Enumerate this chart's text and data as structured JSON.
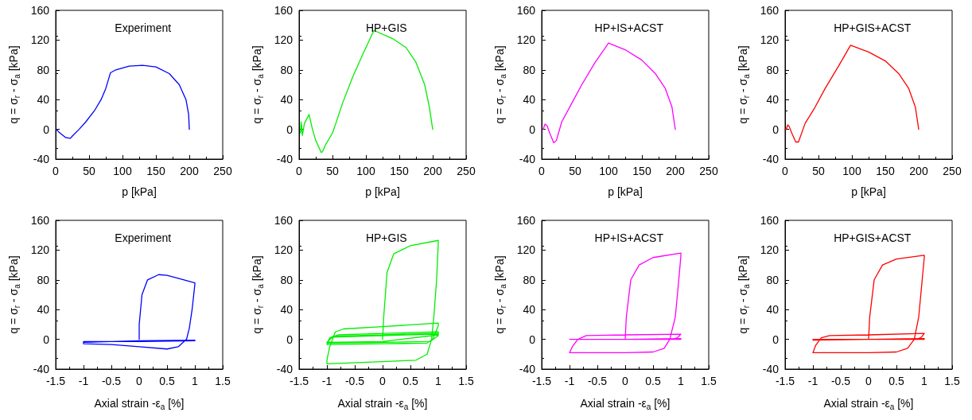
{
  "chart_data": [
    {
      "type": "line",
      "title": "Experiment",
      "xlabel": "p [kPa]",
      "ylabel": "q = σ$_{r}$ - σ$_{a}$ [kPa]",
      "xlim": [
        0,
        250
      ],
      "xticks": [
        0,
        50,
        100,
        150,
        200,
        250
      ],
      "ylim": [
        -40,
        160
      ],
      "yticks": [
        -40,
        0,
        40,
        80,
        120,
        160
      ],
      "grid": false,
      "series": [
        {
          "color": "#0000ff",
          "x": [
            200,
            199,
            195,
            185,
            170,
            150,
            130,
            110,
            90,
            82,
            80,
            75,
            68,
            58,
            45,
            35,
            25,
            22,
            15,
            8,
            4,
            2,
            1
          ],
          "values": [
            0,
            20,
            40,
            60,
            75,
            84,
            86,
            85,
            80,
            76,
            70,
            55,
            40,
            25,
            10,
            0,
            -9,
            -12,
            -11,
            -6,
            -3,
            -1,
            0
          ]
        }
      ]
    },
    {
      "type": "line",
      "title": "HP+GIS",
      "xlabel": "p [kPa]",
      "ylabel": "q = σ$_{r}$ - σ$_{a}$ [kPa]",
      "xlim": [
        0,
        250
      ],
      "xticks": [
        0,
        50,
        100,
        150,
        200,
        250
      ],
      "ylim": [
        -40,
        160
      ],
      "yticks": [
        -40,
        0,
        40,
        80,
        120,
        160
      ],
      "grid": false,
      "series": [
        {
          "color": "#00ee00",
          "x": [
            200,
            195,
            188,
            175,
            160,
            140,
            112,
            95,
            80,
            65,
            55,
            50,
            40,
            35,
            33,
            25,
            20,
            17,
            15,
            12,
            8,
            5,
            3,
            2,
            4,
            3
          ],
          "values": [
            0,
            30,
            60,
            90,
            110,
            122,
            133,
            100,
            70,
            35,
            8,
            -5,
            -20,
            -30,
            -31,
            -15,
            0,
            12,
            20,
            15,
            8,
            -8,
            10,
            -5,
            5,
            0
          ]
        }
      ]
    },
    {
      "type": "line",
      "title": "HP+IS+ACST",
      "xlabel": "p [kPa]",
      "ylabel": "q = σ$_{r}$ - σ$_{a}$ [kPa]",
      "xlim": [
        0,
        250
      ],
      "xticks": [
        0,
        50,
        100,
        150,
        200,
        250
      ],
      "ylim": [
        -40,
        160
      ],
      "yticks": [
        -40,
        0,
        40,
        80,
        120,
        160
      ],
      "grid": false,
      "series": [
        {
          "color": "#ff00ff",
          "x": [
            200,
            195,
            185,
            170,
            150,
            125,
            100,
            80,
            60,
            45,
            30,
            22,
            18,
            12,
            8,
            5,
            3,
            2
          ],
          "values": [
            0,
            30,
            55,
            75,
            93,
            107,
            116,
            90,
            60,
            35,
            10,
            -15,
            -18,
            -5,
            5,
            7,
            2,
            0
          ]
        }
      ]
    },
    {
      "type": "line",
      "title": "HP+GIS+ACST",
      "xlabel": "p [kPa]",
      "ylabel": "q = σ$_{r}$ - σ$_{a}$ [kPa]",
      "xlim": [
        0,
        250
      ],
      "xticks": [
        0,
        50,
        100,
        150,
        200,
        250
      ],
      "ylim": [
        -40,
        160
      ],
      "yticks": [
        -40,
        0,
        40,
        80,
        120,
        160
      ],
      "grid": false,
      "series": [
        {
          "color": "#ff0000",
          "x": [
            200,
            195,
            185,
            170,
            150,
            125,
            98,
            80,
            60,
            45,
            30,
            20,
            16,
            10,
            6,
            4,
            2,
            0
          ],
          "values": [
            0,
            30,
            55,
            75,
            92,
            104,
            113,
            85,
            55,
            30,
            8,
            -17,
            -17,
            -5,
            4,
            6,
            1,
            0
          ]
        }
      ]
    },
    {
      "type": "line",
      "title": "Experiment",
      "xlabel": "Axial strain -ε$_{a}$ [%]",
      "ylabel": "q = σ$_{r}$ - σ$_{a}$ [kPa]",
      "xlim": [
        -1.5,
        1.5
      ],
      "xticks": [
        -1.5,
        -1,
        -0.5,
        0,
        0.5,
        1,
        1.5
      ],
      "ylim": [
        -40,
        160
      ],
      "yticks": [
        -40,
        0,
        40,
        80,
        120,
        160
      ],
      "grid": false,
      "series": [
        {
          "color": "#0000ff",
          "x": [
            0,
            0,
            0.05,
            0.15,
            0.35,
            0.5,
            0.7,
            1,
            1,
            0.95,
            0.9,
            0.85,
            0.7,
            0.5,
            0,
            -0.5,
            -1,
            -1,
            -0.5,
            0,
            0.5,
            1,
            1,
            0,
            -1,
            -1,
            0,
            1
          ],
          "values": [
            0,
            20,
            60,
            80,
            87,
            86,
            82,
            76,
            74,
            40,
            15,
            0,
            -10,
            -13,
            -10,
            -7,
            -6,
            -4,
            -3,
            -2,
            -2,
            -1,
            -2,
            -3,
            -3,
            -4,
            -2,
            -1
          ]
        }
      ]
    },
    {
      "type": "line",
      "title": "HP+GIS",
      "xlabel": "Axial strain -ε$_{a}$ [%]",
      "ylabel": "q = σ$_{r}$ - σ$_{a}$ [kPa]",
      "xlim": [
        -1.5,
        1.5
      ],
      "xticks": [
        -1.5,
        -1,
        -0.5,
        0,
        0.5,
        1,
        1.5
      ],
      "ylim": [
        -40,
        160
      ],
      "yticks": [
        -40,
        0,
        40,
        80,
        120,
        160
      ],
      "grid": false,
      "series": [
        {
          "color": "#00ee00",
          "x": [
            0,
            0.02,
            0.08,
            0.2,
            0.5,
            1,
            1,
            0.97,
            0.92,
            0.88,
            0.8,
            0.6,
            0,
            -1,
            -1,
            -0.95,
            -0.85,
            -0.7,
            0,
            1,
            1,
            0.9,
            0.8,
            0,
            -1,
            -0.95,
            -0.8,
            0,
            1,
            1,
            0.85,
            0,
            -1,
            -0.9,
            0,
            1,
            1,
            0,
            -1,
            -0.9,
            0,
            1
          ],
          "values": [
            0,
            30,
            90,
            115,
            126,
            133,
            130,
            80,
            30,
            0,
            -20,
            -28,
            -30,
            -33,
            -28,
            -10,
            10,
            14,
            17,
            22,
            18,
            0,
            -5,
            -6,
            -7,
            2,
            6,
            8,
            10,
            5,
            -3,
            -4,
            -5,
            4,
            6,
            8,
            6,
            -3,
            -4,
            3,
            5,
            7
          ]
        }
      ]
    },
    {
      "type": "line",
      "title": "HP+IS+ACST",
      "xlabel": "Axial strain -ε$_{a}$ [%]",
      "ylabel": "q = σ$_{r}$ - σ$_{a}$ [kPa]",
      "xlim": [
        -1.5,
        1.5
      ],
      "xticks": [
        -1.5,
        -1,
        -0.5,
        0,
        0.5,
        1,
        1.5
      ],
      "ylim": [
        -40,
        160
      ],
      "yticks": [
        -40,
        0,
        40,
        80,
        120,
        160
      ],
      "grid": false,
      "series": [
        {
          "color": "#ff00ff",
          "x": [
            0,
            0.02,
            0.1,
            0.25,
            0.5,
            1,
            1,
            0.95,
            0.9,
            0.8,
            0.7,
            0.5,
            0,
            -1,
            -0.95,
            -0.85,
            -0.7,
            0,
            1,
            0.95,
            0.9,
            0,
            -1,
            0,
            1,
            0,
            -1,
            0,
            1
          ],
          "values": [
            0,
            30,
            80,
            100,
            110,
            116,
            112,
            70,
            30,
            0,
            -12,
            -17,
            -18,
            -18,
            -10,
            0,
            5,
            6,
            7,
            3,
            1,
            0,
            0,
            0,
            0,
            0,
            0,
            0,
            1
          ]
        }
      ]
    },
    {
      "type": "line",
      "title": "HP+GIS+ACST",
      "xlabel": "Axial strain -ε$_{a}$ [%]",
      "ylabel": "q = σ$_{r}$ - σ$_{a}$ [kPa]",
      "xlim": [
        -1.5,
        1.5
      ],
      "xticks": [
        -1.5,
        -1,
        -0.5,
        0,
        0.5,
        1,
        1.5
      ],
      "ylim": [
        -40,
        160
      ],
      "yticks": [
        -40,
        0,
        40,
        80,
        120,
        160
      ],
      "grid": false,
      "series": [
        {
          "color": "#ff0000",
          "x": [
            0,
            0.02,
            0.1,
            0.25,
            0.5,
            1,
            1,
            0.95,
            0.9,
            0.82,
            0.7,
            0.5,
            0,
            -1,
            -0.95,
            -0.85,
            -0.7,
            0,
            1,
            0.95,
            0.9,
            0,
            -1,
            0,
            1,
            0,
            -1,
            0,
            1
          ],
          "values": [
            0,
            30,
            80,
            100,
            108,
            113,
            110,
            70,
            30,
            0,
            -12,
            -17,
            -18,
            -18,
            -8,
            2,
            5,
            6,
            8,
            3,
            1,
            0,
            0,
            0,
            0,
            0,
            -1,
            0,
            1
          ]
        }
      ]
    }
  ]
}
